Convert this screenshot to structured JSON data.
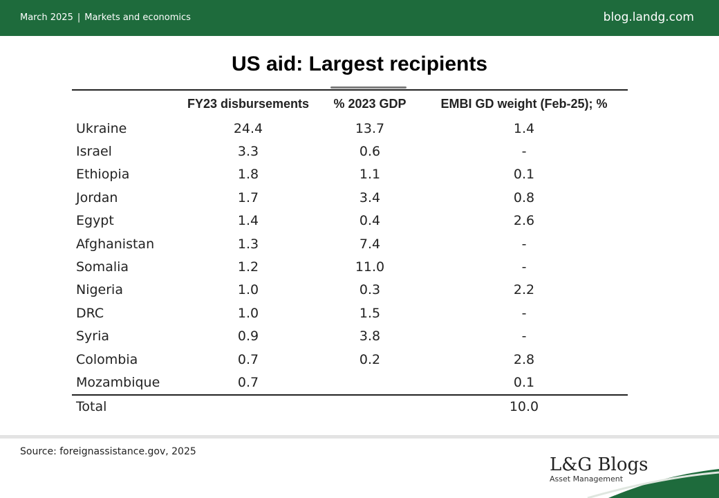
{
  "header": {
    "date": "March 2025",
    "separator": "|",
    "category": "Markets and economics",
    "site": "blog.landg.com"
  },
  "title": "US aid: Largest recipients",
  "table": {
    "columns": [
      "",
      "FY23 disbursements",
      "% 2023 GDP",
      "EMBI GD weight (Feb-25); %"
    ],
    "rows": [
      {
        "country": "Ukraine",
        "fy23": "24.4",
        "gdp": "13.7",
        "embi": "1.4"
      },
      {
        "country": "Israel",
        "fy23": "3.3",
        "gdp": "0.6",
        "embi": "-"
      },
      {
        "country": "Ethiopia",
        "fy23": "1.8",
        "gdp": "1.1",
        "embi": "0.1"
      },
      {
        "country": "Jordan",
        "fy23": "1.7",
        "gdp": "3.4",
        "embi": "0.8"
      },
      {
        "country": "Egypt",
        "fy23": "1.4",
        "gdp": "0.4",
        "embi": "2.6"
      },
      {
        "country": "Afghanistan",
        "fy23": "1.3",
        "gdp": "7.4",
        "embi": "-"
      },
      {
        "country": "Somalia",
        "fy23": "1.2",
        "gdp": "11.0",
        "embi": "-"
      },
      {
        "country": "Nigeria",
        "fy23": "1.0",
        "gdp": "0.3",
        "embi": "2.2"
      },
      {
        "country": "DRC",
        "fy23": "1.0",
        "gdp": "1.5",
        "embi": "-"
      },
      {
        "country": "Syria",
        "fy23": "0.9",
        "gdp": "3.8",
        "embi": "-"
      },
      {
        "country": "Colombia",
        "fy23": "0.7",
        "gdp": "0.2",
        "embi": "2.8"
      },
      {
        "country": "Mozambique",
        "fy23": "0.7",
        "gdp": "",
        "embi": "0.1"
      }
    ],
    "total": {
      "country": "Total",
      "fy23": "",
      "gdp": "",
      "embi": "10.0"
    }
  },
  "footer": {
    "source": "Source: foreignassistance.gov, 2025",
    "logo_main": "L&G Blogs",
    "logo_sub": "Asset Management"
  },
  "colors": {
    "brand_green": "#1e6b3c"
  }
}
